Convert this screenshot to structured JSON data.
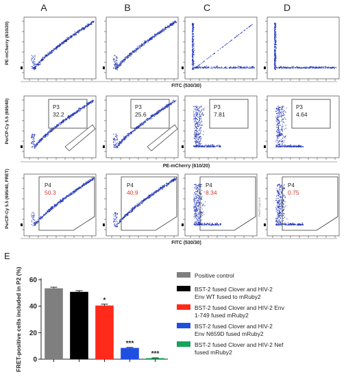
{
  "column_labels": [
    "A",
    "B",
    "C",
    "D"
  ],
  "panel_E_label": "E",
  "flow_rows": [
    {
      "row": 1,
      "xlabel": "FITC (530/30)",
      "ylabel": "PE-mCherry (610/20)",
      "panels": [
        {
          "column": "A",
          "pattern": "diagonal"
        },
        {
          "column": "B",
          "pattern": "diagonal"
        },
        {
          "column": "C",
          "pattern": "split"
        },
        {
          "column": "D",
          "pattern": "split"
        }
      ]
    },
    {
      "row": 2,
      "xlabel": "PE-mCherry (610/20)",
      "ylabel": "PerCP-Cy 5.5 (695/40)",
      "panels": [
        {
          "column": "A",
          "pattern": "diagonal",
          "gate": "P3",
          "value": "32.2"
        },
        {
          "column": "B",
          "pattern": "diagonal",
          "gate": "P3",
          "value": "25.6"
        },
        {
          "column": "C",
          "pattern": "scatter",
          "gate": "P3",
          "value": "7.81"
        },
        {
          "column": "D",
          "pattern": "scatter",
          "gate": "P3",
          "value": "4.64"
        }
      ]
    },
    {
      "row": 3,
      "xlabel": "FITC (530/30)",
      "ylabel": "PerCP-Cy 5.5 (695/40, FRET)",
      "panels": [
        {
          "column": "A",
          "pattern": "diagonal",
          "gate": "P4",
          "value": "50.3"
        },
        {
          "column": "B",
          "pattern": "diagonal",
          "gate": "P4",
          "value": "40.9"
        },
        {
          "column": "C",
          "pattern": "scatter",
          "gate": "P4",
          "value": "8.34"
        },
        {
          "column": "D",
          "pattern": "scatter",
          "gate": "P4",
          "value": "0.75",
          "side_label": "PerCP-Cy5-5-A"
        }
      ]
    }
  ],
  "chart_data": {
    "type": "bar",
    "title": "",
    "xlabel": "",
    "ylabel": "FRET-positive cells included in P2 (%)",
    "ylim": [
      0,
      60
    ],
    "yticks": [
      0,
      20,
      40,
      60
    ],
    "grid": false,
    "legend_position": "right",
    "categories": [
      "Positive control",
      "BST-2 fused Clover and HIV-2 Env WT fused to mRuby2",
      "BST-2 fused Clover and HIV-2 Env 1-749 fused mRuby2",
      "BST-2 fused Clover and HIV-2 Env N659D fused mRuby2",
      "BST-2 fused Clover and HIV-2 Nef fused mRuby2"
    ],
    "legend_lines": [
      [
        "Positive control"
      ],
      [
        "BST-2 fused Clover and HIV-2",
        "Env WT fused to mRuby2"
      ],
      [
        "BST-2 fused Clover and HIV-2 Env",
        "1-749 fused mRuby2"
      ],
      [
        "BST-2 fused Clover and HIV-2",
        "Env N659D fused mRuby2"
      ],
      [
        "BST-2 fused Clover and HIV-2 Nef",
        "fused mRuby2"
      ]
    ],
    "values": [
      53.5,
      50.8,
      40.5,
      8.5,
      0.8
    ],
    "errors": [
      0.8,
      0.9,
      1.0,
      0.4,
      0.2
    ],
    "significance": [
      "",
      "",
      "*",
      "***",
      "***"
    ],
    "colors": [
      "#7f7f7f",
      "#000000",
      "#ff2a1a",
      "#1f4fe0",
      "#17a35a"
    ]
  }
}
